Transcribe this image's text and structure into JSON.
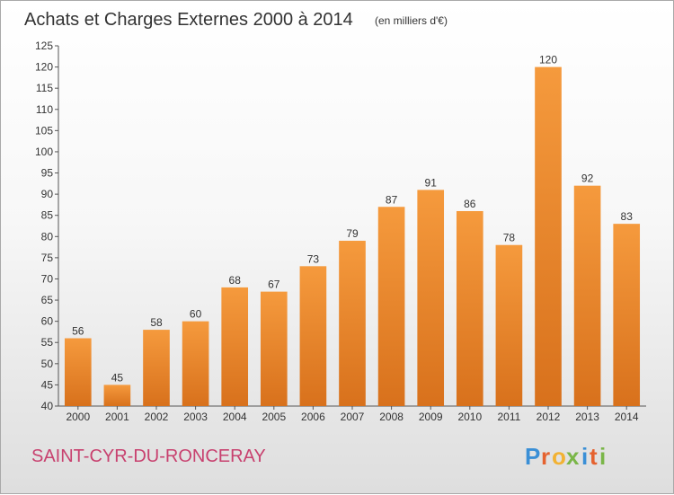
{
  "chart_data": {
    "type": "bar",
    "title": "Achats et Charges Externes 2000 à 2014",
    "subtitle": "(en milliers d'€)",
    "categories": [
      "2000",
      "2001",
      "2002",
      "2003",
      "2004",
      "2005",
      "2006",
      "2007",
      "2008",
      "2009",
      "2010",
      "2011",
      "2012",
      "2013",
      "2014"
    ],
    "values": [
      56,
      45,
      58,
      60,
      68,
      67,
      73,
      79,
      87,
      91,
      86,
      78,
      120,
      92,
      83
    ],
    "ylim": [
      40,
      125
    ],
    "yticks": [
      40,
      45,
      50,
      55,
      60,
      65,
      70,
      75,
      80,
      85,
      90,
      95,
      100,
      105,
      110,
      115,
      120,
      125
    ],
    "xlabel": "",
    "ylabel": "",
    "grid": false,
    "bar_color": "#f59a3d",
    "bar_color_dark": "#d8711c"
  },
  "footer": {
    "town": "SAINT-CYR-DU-RONCERAY",
    "logo_letters": [
      "P",
      "r",
      "o",
      "x",
      "i",
      "t",
      "i"
    ],
    "logo_colors": [
      "#3a8fd6",
      "#e5622f",
      "#f2b233",
      "#7ab648",
      "#3a8fd6",
      "#e5622f",
      "#7ab648"
    ]
  }
}
